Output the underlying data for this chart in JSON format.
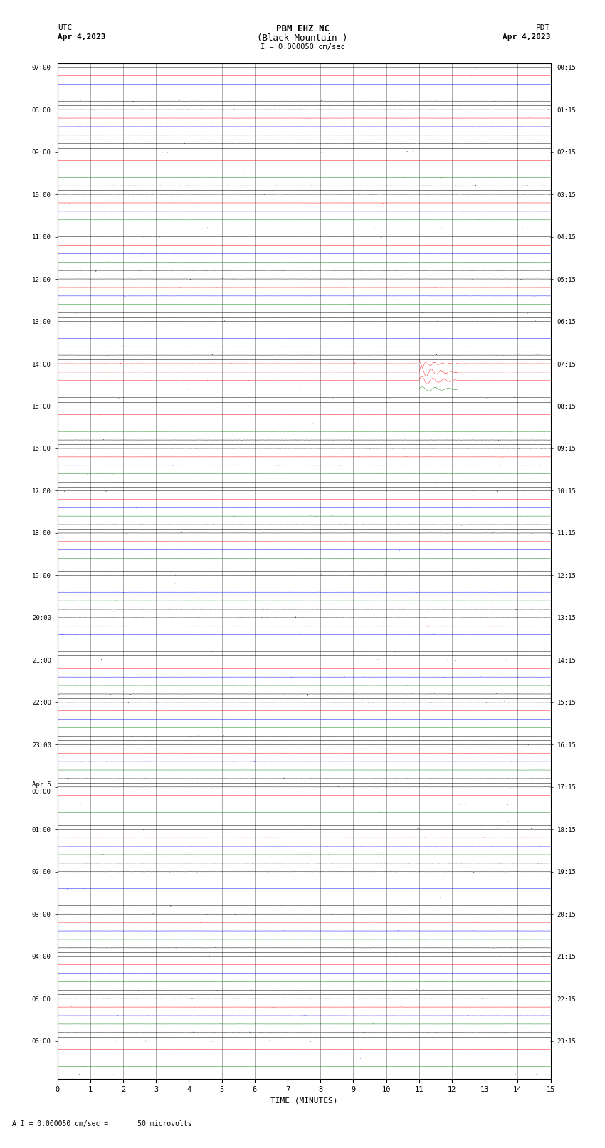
{
  "title_line1": "PBM EHZ NC",
  "title_line2": "(Black Mountain )",
  "scale_text": "I = 0.000050 cm/sec",
  "left_label": "UTC",
  "left_date": "Apr 4,2023",
  "right_label": "PDT",
  "right_date": "Apr 4,2023",
  "bottom_label": "TIME (MINUTES)",
  "bottom_note": "A I = 0.000050 cm/sec =       50 microvolts",
  "xmin": 0,
  "xmax": 15,
  "fig_width": 8.5,
  "fig_height": 16.13,
  "bg_color": "#ffffff",
  "n_time_slots": 24,
  "left_times": [
    "07:00",
    "08:00",
    "09:00",
    "10:00",
    "11:00",
    "12:00",
    "13:00",
    "14:00",
    "15:00",
    "16:00",
    "17:00",
    "18:00",
    "19:00",
    "20:00",
    "21:00",
    "22:00",
    "23:00",
    "Apr 5\n00:00",
    "01:00",
    "02:00",
    "03:00",
    "04:00",
    "05:00",
    "06:00"
  ],
  "right_times": [
    "00:15",
    "01:15",
    "02:15",
    "03:15",
    "04:15",
    "05:15",
    "06:15",
    "07:15",
    "08:15",
    "09:15",
    "10:15",
    "11:15",
    "12:15",
    "13:15",
    "14:15",
    "15:15",
    "16:15",
    "17:15",
    "18:15",
    "19:15",
    "20:15",
    "21:15",
    "22:15",
    "23:15"
  ],
  "sub_lines_per_slot": 5,
  "line_colors_pattern": [
    "#000000",
    "#ff0000",
    "#0000ff",
    "#008000",
    "#000000"
  ],
  "earthquake_slot": 7,
  "earthquake_subline": 0,
  "earthquake_minute": 11.0,
  "earthquake_amplitude": 0.8,
  "seed": 123
}
